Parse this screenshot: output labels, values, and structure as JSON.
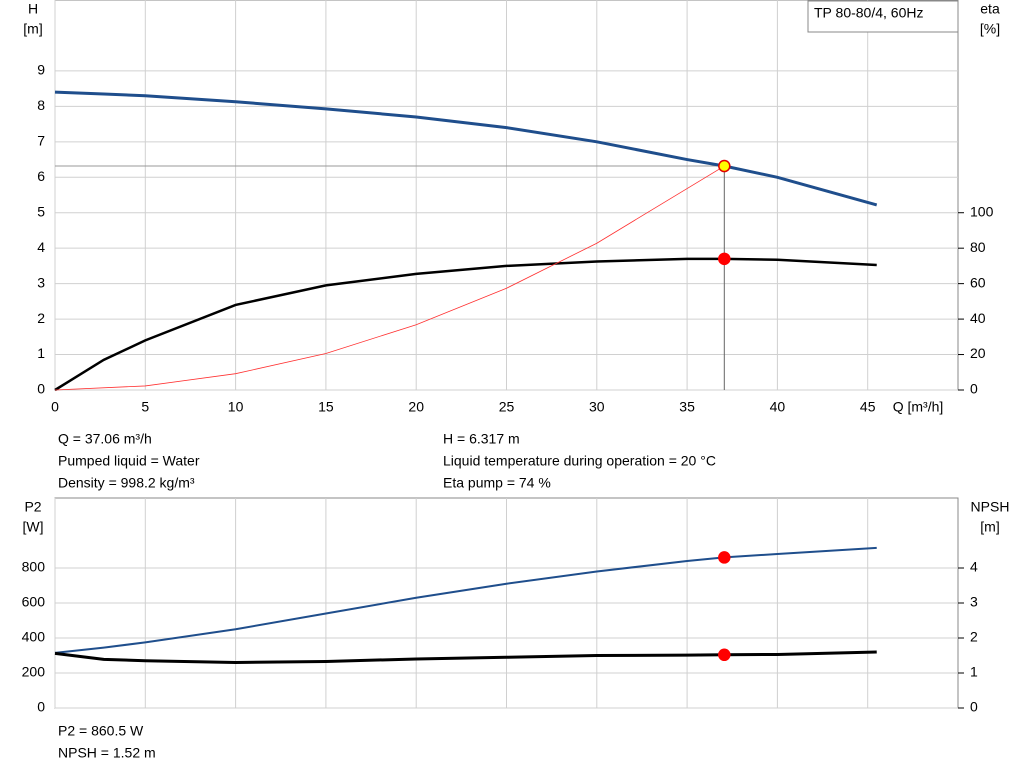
{
  "chart_data": [
    {
      "type": "line",
      "label_box": "TP 80-80/4, 60Hz",
      "ylabel": [
        "H",
        "[m]"
      ],
      "y2label": [
        "eta",
        "[%]"
      ],
      "xlabel": "Q [m³/h]",
      "xlim": [
        0,
        50
      ],
      "xticks": [
        0,
        5,
        10,
        15,
        20,
        25,
        30,
        35,
        40,
        45
      ],
      "ylim": [
        0,
        11
      ],
      "yticks": [
        0,
        1,
        2,
        3,
        4,
        5,
        6,
        7,
        8,
        9
      ],
      "y2lim": [
        0,
        220
      ],
      "y2ticks": [
        0,
        20,
        40,
        60,
        80,
        100
      ],
      "grid": true,
      "series": [
        {
          "color": "#1f4e8c",
          "width": 3,
          "x": [
            0,
            2.7,
            5,
            10,
            15,
            20,
            25,
            30,
            35,
            37.06,
            40,
            45.5
          ],
          "values": [
            8.4,
            8.35,
            8.3,
            8.13,
            7.93,
            7.7,
            7.4,
            7.0,
            6.5,
            6.317,
            6.0,
            5.22
          ]
        },
        {
          "color": "#000000",
          "width": 2.5,
          "axis": "y2",
          "x": [
            0,
            2.7,
            5,
            10,
            15,
            20,
            25,
            30,
            35,
            37.06,
            40,
            45.5
          ],
          "values": [
            0,
            17,
            28,
            48,
            59,
            65.5,
            70,
            72.5,
            74,
            74,
            73.5,
            70.5
          ]
        },
        {
          "color": "#ff3030",
          "width": 0.8,
          "x": [
            0,
            5,
            10,
            15,
            20,
            25,
            30,
            37.06
          ],
          "values": [
            0,
            0.115,
            0.46,
            1.03,
            1.84,
            2.87,
            4.14,
            6.317
          ]
        }
      ],
      "points": [
        {
          "x": 37.06,
          "y": 6.317,
          "color": "#ffff00",
          "edge": "#e00000",
          "guides": true
        },
        {
          "x": 37.06,
          "y": 74,
          "axis": "y2",
          "color": "#ff0000"
        }
      ],
      "info": [
        [
          "Q = 37.06 m³/h",
          "Pumped liquid = Water",
          "Density = 998.2 kg/m³"
        ],
        [
          "H = 6.317 m",
          "Liquid temperature during operation = 20 °C",
          "Eta pump = 74 %"
        ]
      ]
    },
    {
      "type": "line",
      "ylabel": [
        "P2",
        "[W]"
      ],
      "y2label": [
        "NPSH",
        "[m]"
      ],
      "xlim": [
        0,
        50
      ],
      "xticks": [
        0,
        5,
        10,
        15,
        20,
        25,
        30,
        35,
        40,
        45
      ],
      "ylim": [
        0,
        1200
      ],
      "yticks": [
        0,
        200,
        400,
        600,
        800
      ],
      "y2lim": [
        0,
        6
      ],
      "y2ticks": [
        0,
        1,
        2,
        3,
        4
      ],
      "grid": true,
      "series": [
        {
          "color": "#1f4e8c",
          "width": 2,
          "x": [
            0,
            2.7,
            5,
            10,
            15,
            20,
            25,
            30,
            35,
            37.06,
            40,
            45.5
          ],
          "values": [
            315,
            345,
            375,
            450,
            540,
            630,
            710,
            780,
            840,
            860.5,
            880,
            915
          ]
        },
        {
          "color": "#000000",
          "width": 3,
          "axis": "y2",
          "x": [
            0,
            2.7,
            5,
            10,
            15,
            20,
            25,
            30,
            35,
            37.06,
            40,
            45.5
          ],
          "values": [
            1.56,
            1.39,
            1.35,
            1.3,
            1.33,
            1.4,
            1.45,
            1.5,
            1.51,
            1.52,
            1.53,
            1.6
          ]
        }
      ],
      "points": [
        {
          "x": 37.06,
          "y": 860.5,
          "color": "#ff0000"
        },
        {
          "x": 37.06,
          "y": 1.52,
          "axis": "y2",
          "color": "#ff0000"
        }
      ],
      "info": [
        [
          "P2 = 860.5 W",
          "NPSH = 1.52 m"
        ]
      ]
    }
  ]
}
